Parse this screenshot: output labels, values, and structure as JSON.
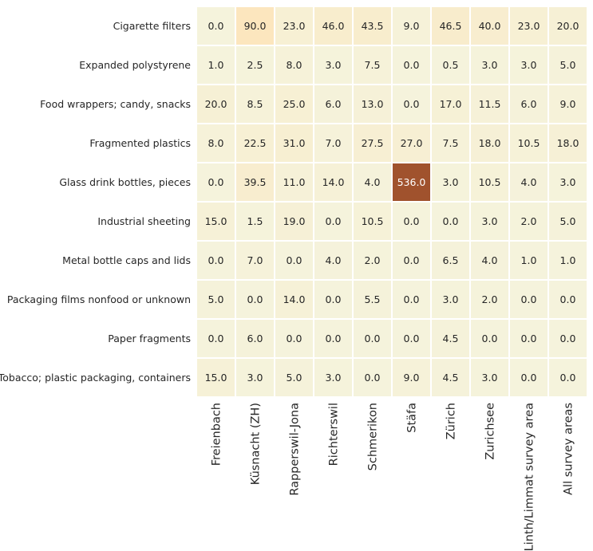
{
  "chart_data": {
    "type": "heatmap",
    "title": "",
    "xlabel": "",
    "ylabel": "",
    "rows": [
      "Cigarette filters",
      "Expanded polystyrene",
      "Food wrappers; candy, snacks",
      "Fragmented plastics",
      "Glass drink bottles, pieces",
      "Industrial sheeting",
      "Metal bottle caps and lids",
      "Packaging films nonfood or unknown",
      "Paper fragments",
      "Tobacco; plastic packaging, containers"
    ],
    "columns": [
      "Freienbach",
      "Küsnacht (ZH)",
      "Rapperswil-Jona",
      "Richterswil",
      "Schmerikon",
      "Stäfa",
      "Zürich",
      "Zurichsee",
      "Linth/Limmat survey area",
      "All survey areas"
    ],
    "values": [
      [
        0.0,
        90.0,
        23.0,
        46.0,
        43.5,
        9.0,
        46.5,
        40.0,
        23.0,
        20.0
      ],
      [
        1.0,
        2.5,
        8.0,
        3.0,
        7.5,
        0.0,
        0.5,
        3.0,
        3.0,
        5.0
      ],
      [
        20.0,
        8.5,
        25.0,
        6.0,
        13.0,
        0.0,
        17.0,
        11.5,
        6.0,
        9.0
      ],
      [
        8.0,
        22.5,
        31.0,
        7.0,
        27.5,
        27.0,
        7.5,
        18.0,
        10.5,
        18.0
      ],
      [
        0.0,
        39.5,
        11.0,
        14.0,
        4.0,
        536.0,
        3.0,
        10.5,
        4.0,
        3.0
      ],
      [
        15.0,
        1.5,
        19.0,
        0.0,
        10.5,
        0.0,
        0.0,
        3.0,
        2.0,
        5.0
      ],
      [
        0.0,
        7.0,
        0.0,
        4.0,
        2.0,
        0.0,
        6.5,
        4.0,
        1.0,
        1.0
      ],
      [
        5.0,
        0.0,
        14.0,
        0.0,
        5.5,
        0.0,
        3.0,
        2.0,
        0.0,
        0.0
      ],
      [
        0.0,
        6.0,
        0.0,
        0.0,
        0.0,
        0.0,
        4.5,
        0.0,
        0.0,
        0.0
      ],
      [
        15.0,
        3.0,
        5.0,
        3.0,
        0.0,
        9.0,
        4.5,
        3.0,
        0.0,
        0.0
      ]
    ],
    "value_format": "0.0",
    "colormap": [
      "#f5f3dc",
      "#fde4b8",
      "#a0522d"
    ],
    "grid": false,
    "legend": "none"
  }
}
